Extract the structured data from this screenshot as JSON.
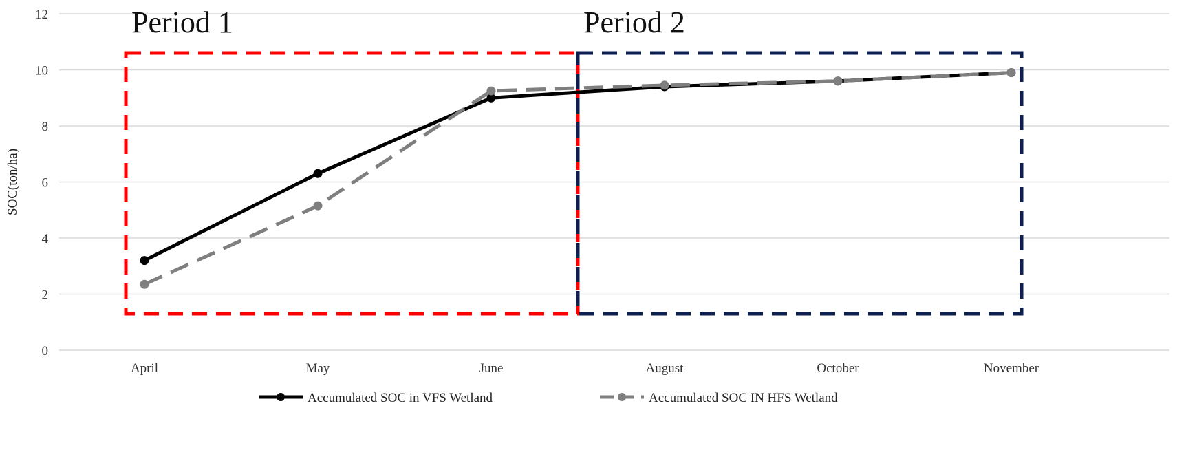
{
  "chart_data": {
    "type": "line",
    "categories": [
      "April",
      "May",
      "June",
      "August",
      "October",
      "November"
    ],
    "series": [
      {
        "name": "Accumulated SOC in VFS Wetland",
        "values": [
          3.2,
          6.3,
          9.0,
          9.4,
          9.6,
          9.9
        ],
        "color": "#000000",
        "style": "solid"
      },
      {
        "name": "Accumulated SOC IN HFS Wetland",
        "values": [
          2.35,
          5.15,
          9.25,
          9.45,
          9.6,
          9.9
        ],
        "color": "#7f7f7f",
        "style": "dashed"
      }
    ],
    "xlabel": "",
    "ylabel": "SOC(ton/ha)",
    "ylim": [
      0,
      12
    ],
    "yticks": [
      "0",
      "2",
      "4",
      "6",
      "8",
      "10",
      "12"
    ],
    "grid": true,
    "legend": "bottom",
    "annotations": [
      {
        "label": "Period 1",
        "x_from": "April",
        "x_to": "June",
        "y_from": 1.3,
        "y_to": 10.6,
        "color": "#ff0000"
      },
      {
        "label": "Period 2",
        "x_from": "June",
        "x_to": "November",
        "y_from": 1.3,
        "y_to": 10.6,
        "color": "#0d1f4f"
      }
    ]
  }
}
